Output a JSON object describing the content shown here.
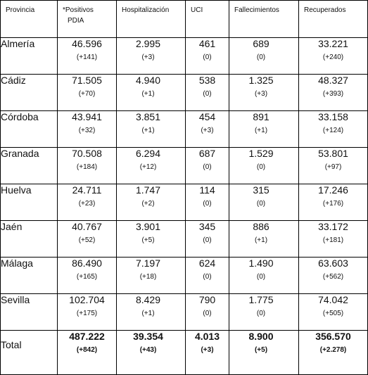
{
  "headers": [
    "Provincia",
    "*Positivos\nPDIA",
    "Hospitalización",
    "UCI",
    "Fallecimientos",
    "Recuperados"
  ],
  "header_lines": {
    "provincia": "Provincia",
    "positivos_1": "*Positivos",
    "positivos_2": "PDIA",
    "hospitalizacion": "Hospitalización",
    "uci": "UCI",
    "fallecimientos": "Fallecimientos",
    "recuperados": "Recuperados"
  },
  "rows": [
    {
      "provincia": "Almería",
      "positivos": "46.596",
      "positivos_chg": "(+141)",
      "hosp": "2.995",
      "hosp_chg": "(+3)",
      "uci": "461",
      "uci_chg": "(0)",
      "fall": "689",
      "fall_chg": "(0)",
      "rec": "33.221",
      "rec_chg": "(+240)"
    },
    {
      "provincia": "Cádiz",
      "positivos": "71.505",
      "positivos_chg": "(+70)",
      "hosp": "4.940",
      "hosp_chg": "(+1)",
      "uci": "538",
      "uci_chg": "(0)",
      "fall": "1.325",
      "fall_chg": "(+3)",
      "rec": "48.327",
      "rec_chg": "(+393)"
    },
    {
      "provincia": "Córdoba",
      "positivos": "43.941",
      "positivos_chg": "(+32)",
      "hosp": "3.851",
      "hosp_chg": "(+1)",
      "uci": "454",
      "uci_chg": "(+3)",
      "fall": "891",
      "fall_chg": "(+1)",
      "rec": "33.158",
      "rec_chg": "(+124)"
    },
    {
      "provincia": "Granada",
      "positivos": "70.508",
      "positivos_chg": "(+184)",
      "hosp": "6.294",
      "hosp_chg": "(+12)",
      "uci": "687",
      "uci_chg": "(0)",
      "fall": "1.529",
      "fall_chg": "(0)",
      "rec": "53.801",
      "rec_chg": "(+97)"
    },
    {
      "provincia": "Huelva",
      "positivos": "24.711",
      "positivos_chg": "(+23)",
      "hosp": "1.747",
      "hosp_chg": "(+2)",
      "uci": "114",
      "uci_chg": "(0)",
      "fall": "315",
      "fall_chg": "(0)",
      "rec": "17.246",
      "rec_chg": "(+176)"
    },
    {
      "provincia": "Jaén",
      "positivos": "40.767",
      "positivos_chg": "(+52)",
      "hosp": "3.901",
      "hosp_chg": "(+5)",
      "uci": "345",
      "uci_chg": "(0)",
      "fall": "886",
      "fall_chg": "(+1)",
      "rec": "33.172",
      "rec_chg": "(+181)"
    },
    {
      "provincia": "Málaga",
      "positivos": "86.490",
      "positivos_chg": "(+165)",
      "hosp": "7.197",
      "hosp_chg": "(+18)",
      "uci": "624",
      "uci_chg": "(0)",
      "fall": "1.490",
      "fall_chg": "(0)",
      "rec": "63.603",
      "rec_chg": "(+562)"
    },
    {
      "provincia": "Sevilla",
      "positivos": "102.704",
      "positivos_chg": "(+175)",
      "hosp": "8.429",
      "hosp_chg": "(+1)",
      "uci": "790",
      "uci_chg": "(0)",
      "fall": "1.775",
      "fall_chg": "(0)",
      "rec": "74.042",
      "rec_chg": "(+505)"
    }
  ],
  "total": {
    "provincia": "Total",
    "positivos": "487.222",
    "positivos_chg": "(+842)",
    "hosp": "39.354",
    "hosp_chg": "(+43)",
    "uci": "4.013",
    "uci_chg": "(+3)",
    "fall": "8.900",
    "fall_chg": "(+5)",
    "rec": "356.570",
    "rec_chg": "(+2.278)"
  }
}
